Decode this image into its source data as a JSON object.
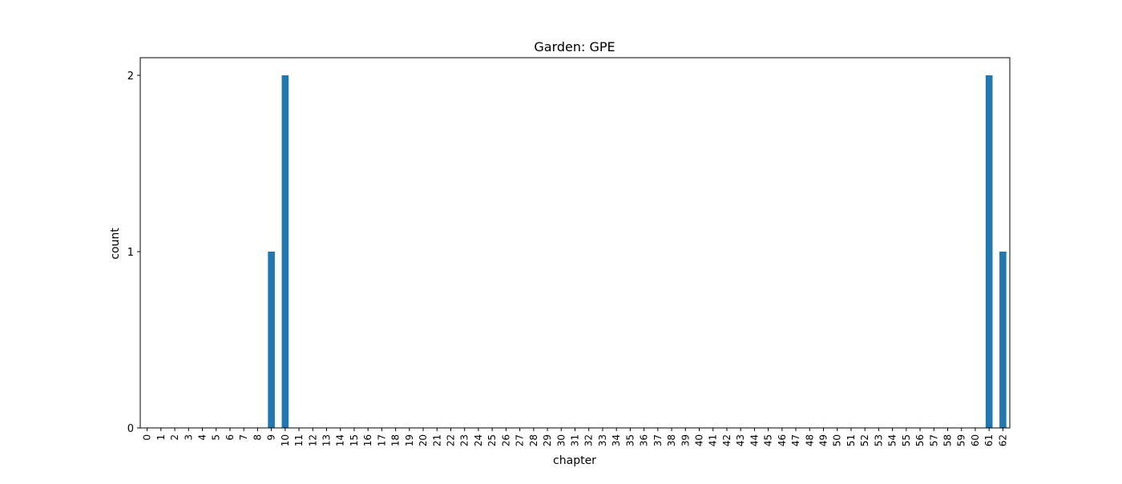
{
  "chart_data": {
    "type": "bar",
    "title": "Garden: GPE",
    "xlabel": "chapter",
    "ylabel": "count",
    "categories": [
      "0",
      "1",
      "2",
      "3",
      "4",
      "5",
      "6",
      "7",
      "8",
      "9",
      "10",
      "11",
      "12",
      "13",
      "14",
      "15",
      "16",
      "17",
      "18",
      "19",
      "20",
      "21",
      "22",
      "23",
      "24",
      "25",
      "26",
      "27",
      "28",
      "29",
      "30",
      "31",
      "32",
      "33",
      "34",
      "35",
      "36",
      "37",
      "38",
      "39",
      "40",
      "41",
      "42",
      "43",
      "44",
      "45",
      "46",
      "47",
      "48",
      "49",
      "50",
      "51",
      "52",
      "53",
      "54",
      "55",
      "56",
      "57",
      "58",
      "59",
      "60",
      "61",
      "62"
    ],
    "values": [
      0,
      0,
      0,
      0,
      0,
      0,
      0,
      0,
      0,
      1,
      2,
      0,
      0,
      0,
      0,
      0,
      0,
      0,
      0,
      0,
      0,
      0,
      0,
      0,
      0,
      0,
      0,
      0,
      0,
      0,
      0,
      0,
      0,
      0,
      0,
      0,
      0,
      0,
      0,
      0,
      0,
      0,
      0,
      0,
      0,
      0,
      0,
      0,
      0,
      0,
      0,
      0,
      0,
      0,
      0,
      0,
      0,
      0,
      0,
      0,
      0,
      2,
      1
    ],
    "yticks": [
      0,
      1,
      2
    ],
    "ylim": [
      0,
      2.1
    ],
    "bar_color": "#1f77b4",
    "grid": false
  }
}
